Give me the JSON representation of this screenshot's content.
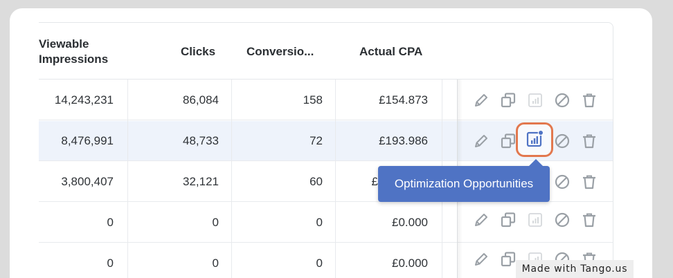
{
  "table": {
    "headers": {
      "viewable_line1": "Viewable",
      "viewable_line2": "Impressions",
      "clicks": "Clicks",
      "conversions": "Conversio...",
      "actual_cpa": "Actual CPA"
    },
    "rows": [
      {
        "viewable": "14,243,231",
        "clicks": "86,084",
        "conversions": "158",
        "cpa": "£154.873"
      },
      {
        "viewable": "8,476,991",
        "clicks": "48,733",
        "conversions": "72",
        "cpa": "£193.986"
      },
      {
        "viewable": "3,800,407",
        "clicks": "32,121",
        "conversions": "60",
        "cpa": "£"
      },
      {
        "viewable": "0",
        "clicks": "0",
        "conversions": "0",
        "cpa": "£0.000"
      },
      {
        "viewable": "0",
        "clicks": "0",
        "conversions": "0",
        "cpa": "£0.000"
      }
    ],
    "action_icons": [
      "pencil-icon",
      "copy-icon",
      "chart-icon",
      "block-icon",
      "trash-icon"
    ]
  },
  "tooltip": {
    "text": "Optimization Opportunities"
  },
  "watermark": {
    "text": "Made with Tango.us"
  },
  "colors": {
    "accent": "#4f73c4",
    "highlight_ring": "#e2784e",
    "row_highlight": "#eef3fb"
  }
}
